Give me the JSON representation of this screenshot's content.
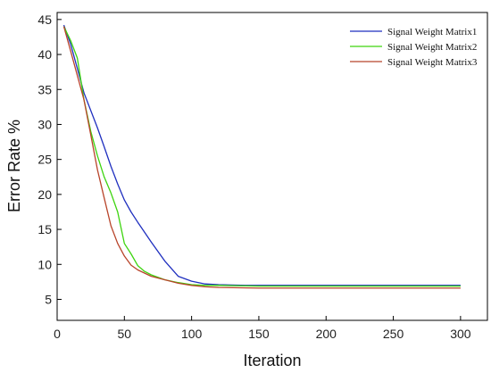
{
  "chart_data": {
    "type": "line",
    "title": "",
    "xlabel": "Iteration",
    "ylabel": "Error Rate %",
    "xlim": [
      0,
      320
    ],
    "ylim": [
      2,
      46
    ],
    "xticks": [
      0,
      50,
      100,
      150,
      200,
      250,
      300
    ],
    "yticks": [
      5,
      10,
      15,
      20,
      25,
      30,
      35,
      40,
      45
    ],
    "grid": false,
    "legend_position": "top-right",
    "series": [
      {
        "name": "Signal Weight Matrix1",
        "color": "#1f2fbf",
        "x": [
          5,
          10,
          15,
          20,
          30,
          35,
          40,
          45,
          50,
          55,
          60,
          70,
          80,
          90,
          100,
          110,
          120,
          140,
          160,
          200,
          250,
          300
        ],
        "y": [
          44.2,
          41.5,
          38,
          34.5,
          29.5,
          26.8,
          24,
          21.5,
          19.2,
          17.5,
          16,
          13.2,
          10.5,
          8.3,
          7.6,
          7.2,
          7.1,
          7,
          7,
          7,
          7,
          7
        ]
      },
      {
        "name": "Signal Weight Matrix2",
        "color": "#3dd40f",
        "x": [
          5,
          10,
          15,
          20,
          25,
          30,
          35,
          40,
          45,
          50,
          55,
          60,
          65,
          70,
          80,
          90,
          100,
          110,
          120,
          150,
          200,
          250,
          300
        ],
        "y": [
          44,
          42,
          39.5,
          33.5,
          29,
          25.5,
          22.5,
          20.2,
          17.5,
          13,
          11.5,
          9.8,
          9,
          8.5,
          7.8,
          7.4,
          7.1,
          7,
          7,
          6.9,
          6.9,
          6.9,
          6.9
        ]
      },
      {
        "name": "Signal Weight Matrix3",
        "color": "#b8442a",
        "x": [
          5,
          10,
          15,
          20,
          25,
          30,
          35,
          40,
          45,
          50,
          55,
          60,
          70,
          80,
          90,
          100,
          110,
          120,
          150,
          200,
          250,
          300
        ],
        "y": [
          44,
          40.5,
          37,
          33.5,
          28.5,
          23.5,
          19.5,
          15.5,
          13,
          11.2,
          9.9,
          9.2,
          8.3,
          7.8,
          7.3,
          7,
          6.8,
          6.7,
          6.6,
          6.6,
          6.6,
          6.6
        ]
      }
    ]
  }
}
